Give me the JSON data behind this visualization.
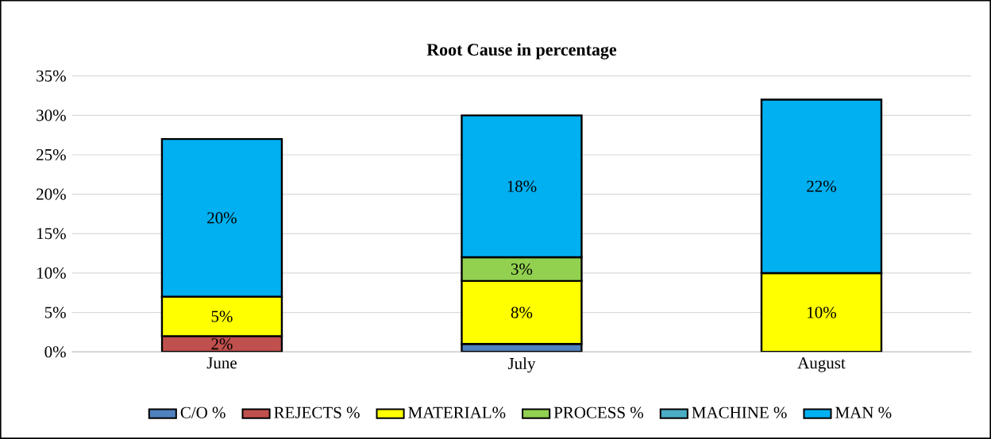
{
  "chart_data": {
    "type": "bar",
    "stacked": true,
    "title": "Root Cause in percentage",
    "categories": [
      "June",
      "July",
      "August"
    ],
    "series": [
      {
        "name": "C/O %",
        "color": "#4f81bd",
        "values": [
          null,
          1,
          null
        ],
        "value_labels": [
          null,
          null,
          null
        ]
      },
      {
        "name": "REJECTS %",
        "color": "#c0504d",
        "values": [
          2,
          null,
          null
        ],
        "value_labels": [
          "2%",
          null,
          null
        ]
      },
      {
        "name": "MATERIAL%",
        "color": "#ffff00",
        "values": [
          5,
          8,
          10
        ],
        "value_labels": [
          "5%",
          "8%",
          "10%"
        ]
      },
      {
        "name": "PROCESS %",
        "color": "#92d050",
        "values": [
          null,
          3,
          null
        ],
        "value_labels": [
          null,
          "3%",
          null
        ]
      },
      {
        "name": "MACHINE %",
        "color": "#4bacc6",
        "values": [
          null,
          null,
          null
        ],
        "value_labels": [
          null,
          null,
          null
        ]
      },
      {
        "name": "MAN %",
        "color": "#00b0f0",
        "values": [
          20,
          18,
          22
        ],
        "value_labels": [
          "20%",
          "18%",
          "22%"
        ]
      }
    ],
    "ylim": [
      0,
      35
    ],
    "yticks": [
      {
        "value": 0,
        "label": "0%"
      },
      {
        "value": 5,
        "label": "5%"
      },
      {
        "value": 10,
        "label": "10%"
      },
      {
        "value": 15,
        "label": "15%"
      },
      {
        "value": 20,
        "label": "20%"
      },
      {
        "value": 25,
        "label": "25%"
      },
      {
        "value": 30,
        "label": "30%"
      },
      {
        "value": 35,
        "label": "35%"
      }
    ],
    "grid": "y",
    "legend": "bottom"
  }
}
